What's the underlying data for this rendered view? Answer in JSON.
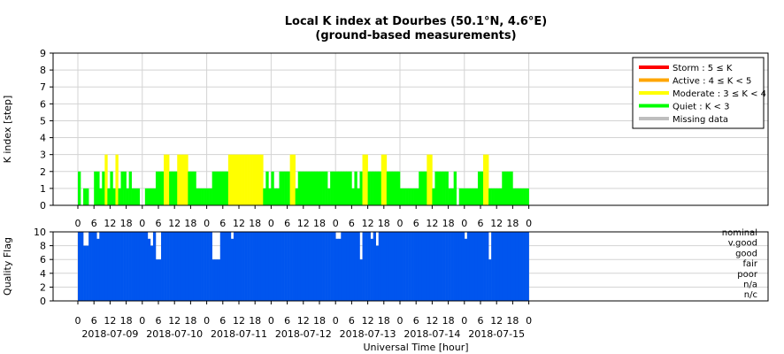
{
  "chart_data": [
    {
      "type": "bar",
      "title_line1": "Local K index at Dourbes (50.1°N, 4.6°E)",
      "title_line2": "(ground-based measurements)",
      "ylabel": "K index [step]",
      "ylim": [
        0,
        9
      ],
      "yticks": [
        "0",
        "1",
        "2",
        "3",
        "4",
        "5",
        "6",
        "7",
        "8",
        "9"
      ],
      "grid": true,
      "legend_position": "top-right",
      "legend": [
        {
          "label": "Storm : 5 ≤ K",
          "color": "#ff0000"
        },
        {
          "label": "Active : 4 ≤ K < 5",
          "color": "#ffa500"
        },
        {
          "label": "Moderate : 3 ≤ K < 4",
          "color": "#ffff00"
        },
        {
          "label": "Quiet : K < 3",
          "color": "#00ff00"
        },
        {
          "label": "Missing data",
          "color": "#bebebe"
        }
      ],
      "x_unit": "hour",
      "x_start": "2018-07-09 00:00 UT",
      "bin_hours": 1,
      "values": [
        2,
        0,
        1,
        1,
        0,
        0,
        2,
        2,
        1,
        2,
        3,
        1,
        2,
        1,
        3,
        1,
        2,
        2,
        1,
        2,
        1,
        1,
        1,
        0,
        0,
        1,
        1,
        1,
        1,
        2,
        2,
        2,
        3,
        3,
        2,
        2,
        2,
        3,
        3,
        3,
        3,
        2,
        2,
        2,
        1,
        1,
        1,
        1,
        1,
        1,
        2,
        2,
        2,
        2,
        2,
        2,
        3,
        3,
        3,
        3,
        3,
        3,
        3,
        3,
        3,
        3,
        3,
        3,
        3,
        1,
        2,
        1,
        2,
        1,
        1,
        2,
        2,
        2,
        2,
        3,
        3,
        1,
        2,
        2,
        2,
        2,
        2,
        2,
        2,
        2,
        2,
        2,
        2,
        1,
        2,
        2,
        2,
        2,
        2,
        2,
        2,
        2,
        1,
        2,
        1,
        2,
        3,
        3,
        2,
        2,
        2,
        2,
        2,
        3,
        3,
        2,
        2,
        2,
        2,
        2,
        1,
        1,
        1,
        1,
        1,
        1,
        1,
        2,
        2,
        2,
        3,
        3,
        1,
        2,
        2,
        2,
        2,
        2,
        1,
        1,
        2,
        0,
        1,
        1,
        1,
        1,
        1,
        1,
        1,
        2,
        2,
        3,
        3,
        1,
        1,
        1,
        1,
        1,
        2,
        2,
        2,
        2,
        1,
        1,
        1,
        1,
        1,
        1
      ]
    },
    {
      "type": "bar",
      "ylabel": "Quality Flag",
      "ylim": [
        0,
        10
      ],
      "yticks": [
        "0",
        "2",
        "4",
        "6",
        "8",
        "10"
      ],
      "category_labels": [
        "nominal",
        "v.good",
        "good",
        "fair",
        "poor",
        "n/a",
        "n/c"
      ],
      "xlabel": "Universal Time [hour]",
      "x_tick_labels": [
        "0",
        "6",
        "12",
        "18"
      ],
      "date_labels": [
        "2018-07-09",
        "2018-07-10",
        "2018-07-11",
        "2018-07-12",
        "2018-07-13",
        "2018-07-14",
        "2018-07-15"
      ],
      "color": "#0055ee",
      "x_start": "2018-07-09 00:00 UT",
      "bin_hours": 1,
      "values": [
        10,
        10,
        8,
        8,
        10,
        10,
        10,
        9,
        10,
        10,
        10,
        10,
        10,
        10,
        10,
        10,
        10,
        10,
        10,
        10,
        10,
        10,
        10,
        10,
        10,
        10,
        9,
        8,
        10,
        6,
        6,
        10,
        10,
        10,
        10,
        10,
        10,
        10,
        10,
        10,
        10,
        10,
        10,
        10,
        10,
        10,
        10,
        10,
        10,
        10,
        6,
        6,
        6,
        10,
        10,
        10,
        10,
        9,
        10,
        10,
        10,
        10,
        10,
        10,
        10,
        10,
        10,
        10,
        10,
        10,
        10,
        10,
        10,
        10,
        10,
        10,
        10,
        10,
        10,
        10,
        10,
        10,
        10,
        10,
        10,
        10,
        10,
        10,
        10,
        10,
        10,
        10,
        10,
        10,
        10,
        10,
        9,
        9,
        10,
        10,
        10,
        10,
        10,
        10,
        10,
        6,
        10,
        10,
        10,
        9,
        10,
        8,
        10,
        10,
        10,
        10,
        10,
        10,
        10,
        10,
        10,
        10,
        10,
        10,
        10,
        10,
        10,
        10,
        10,
        10,
        10,
        10,
        10,
        10,
        10,
        10,
        10,
        10,
        10,
        10,
        10,
        10,
        10,
        10,
        9,
        10,
        10,
        10,
        10,
        10,
        10,
        10,
        10,
        6,
        10,
        10,
        10,
        10,
        10,
        10,
        10,
        10,
        10,
        10,
        10,
        10,
        10,
        10
      ]
    }
  ]
}
